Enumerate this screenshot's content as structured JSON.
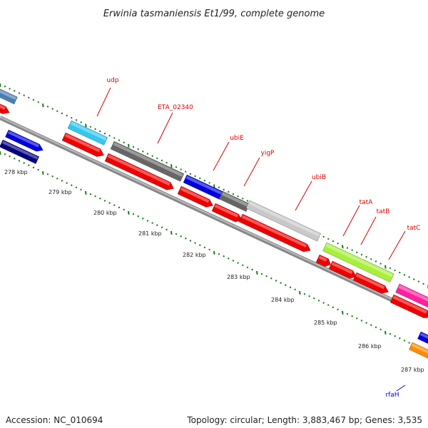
{
  "title": "Erwinia tasmaniensis Et1/99, complete genome",
  "footer": {
    "accession_label": "Accession: NC_010694",
    "summary": "Topology: circular; Length: 3,883,467 bp; Genes: 3,535"
  },
  "kbp_labels": [
    "278 kbp",
    "279 kbp",
    "280 kbp",
    "281 kbp",
    "282 kbp",
    "283 kbp",
    "284 kbp",
    "285 kbp",
    "286 kbp",
    "287 kbp"
  ],
  "genes": [
    {
      "name": "udp",
      "color": "#e00000"
    },
    {
      "name": "ETA_02340",
      "color": "#e00000"
    },
    {
      "name": "ubiE",
      "color": "#e00000"
    },
    {
      "name": "yigP",
      "color": "#e00000"
    },
    {
      "name": "ubiB",
      "color": "#e00000"
    },
    {
      "name": "tatA",
      "color": "#e00000"
    },
    {
      "name": "tatB",
      "color": "#e00000"
    },
    {
      "name": "tatC",
      "color": "#e00000"
    },
    {
      "name": "rfaH",
      "color": "#0000cc"
    }
  ],
  "colors": {
    "backbone": "#888888",
    "tick": "#1a7a1a",
    "cds": "#ee0000",
    "steelblue": "#4a7fb5",
    "cyan": "#33c8f0",
    "darkgray": "#666666",
    "blue": "#0000dd",
    "navy": "#000080",
    "lightgray": "#c8c8c8",
    "lime": "#a6f03a",
    "magenta": "#ff1fa0",
    "orange": "#ff8c00"
  }
}
